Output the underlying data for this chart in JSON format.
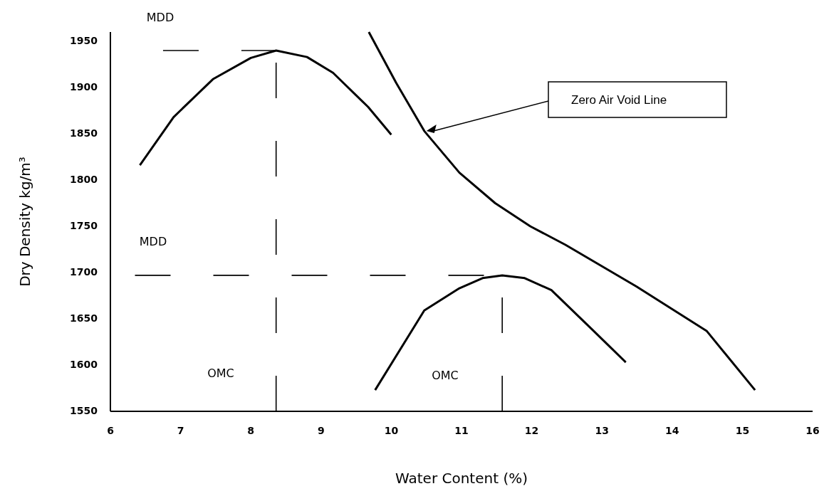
{
  "chart_data": {
    "type": "line",
    "xlabel": "Water Content (%)",
    "ylabel": "Dry Density kg/m³",
    "xlim": [
      6,
      16
    ],
    "xticks": [
      6,
      7,
      8,
      9,
      10,
      11,
      12,
      13,
      14,
      15,
      16
    ],
    "ylim": [
      1550,
      1960
    ],
    "yticks": [
      1550,
      1600,
      1650,
      1700,
      1750,
      1800,
      1850,
      1900,
      1950
    ],
    "grid": false,
    "marker": "none",
    "series": [
      {
        "color": "#000000",
        "line_style": "solid",
        "x": [
          6.42,
          6.9,
          7.46,
          8.0,
          8.36,
          8.8,
          9.17,
          9.67,
          10.0
        ],
        "values": [
          1816,
          1868,
          1909,
          1932,
          1940,
          1933,
          1916,
          1879,
          1849
        ]
      },
      {
        "color": "#000000",
        "line_style": "solid",
        "x": [
          9.77,
          10.47,
          10.97,
          11.3,
          11.58,
          11.9,
          12.28,
          12.88,
          13.34
        ],
        "values": [
          1573,
          1659,
          1683,
          1694,
          1697,
          1694,
          1681,
          1637,
          1603
        ]
      },
      {
        "color": "#000000",
        "line_style": "solid",
        "x": [
          9.68,
          10.07,
          10.47,
          10.97,
          11.48,
          11.98,
          12.48,
          13.49,
          14.49,
          15.18
        ],
        "values": [
          1960,
          1905,
          1853,
          1808,
          1775,
          1750,
          1730,
          1685,
          1637,
          1573
        ]
      },
      {
        "color": "#000000",
        "line_style": "dashed",
        "x": [
          6.75,
          8.36
        ],
        "values": [
          1940,
          1940
        ]
      },
      {
        "color": "#000000",
        "line_style": "dashed",
        "x": [
          8.36,
          8.36
        ],
        "values": [
          1550,
          1940
        ]
      },
      {
        "color": "#000000",
        "line_style": "dashed",
        "x": [
          6.35,
          11.58
        ],
        "values": [
          1697,
          1697
        ]
      },
      {
        "color": "#000000",
        "line_style": "dashed",
        "x": [
          11.58,
          11.58
        ],
        "values": [
          1550,
          1697
        ]
      }
    ],
    "annotations": [
      "Zero Air Void Line",
      "MDD",
      "MDD",
      "OMC",
      "OMC"
    ]
  }
}
